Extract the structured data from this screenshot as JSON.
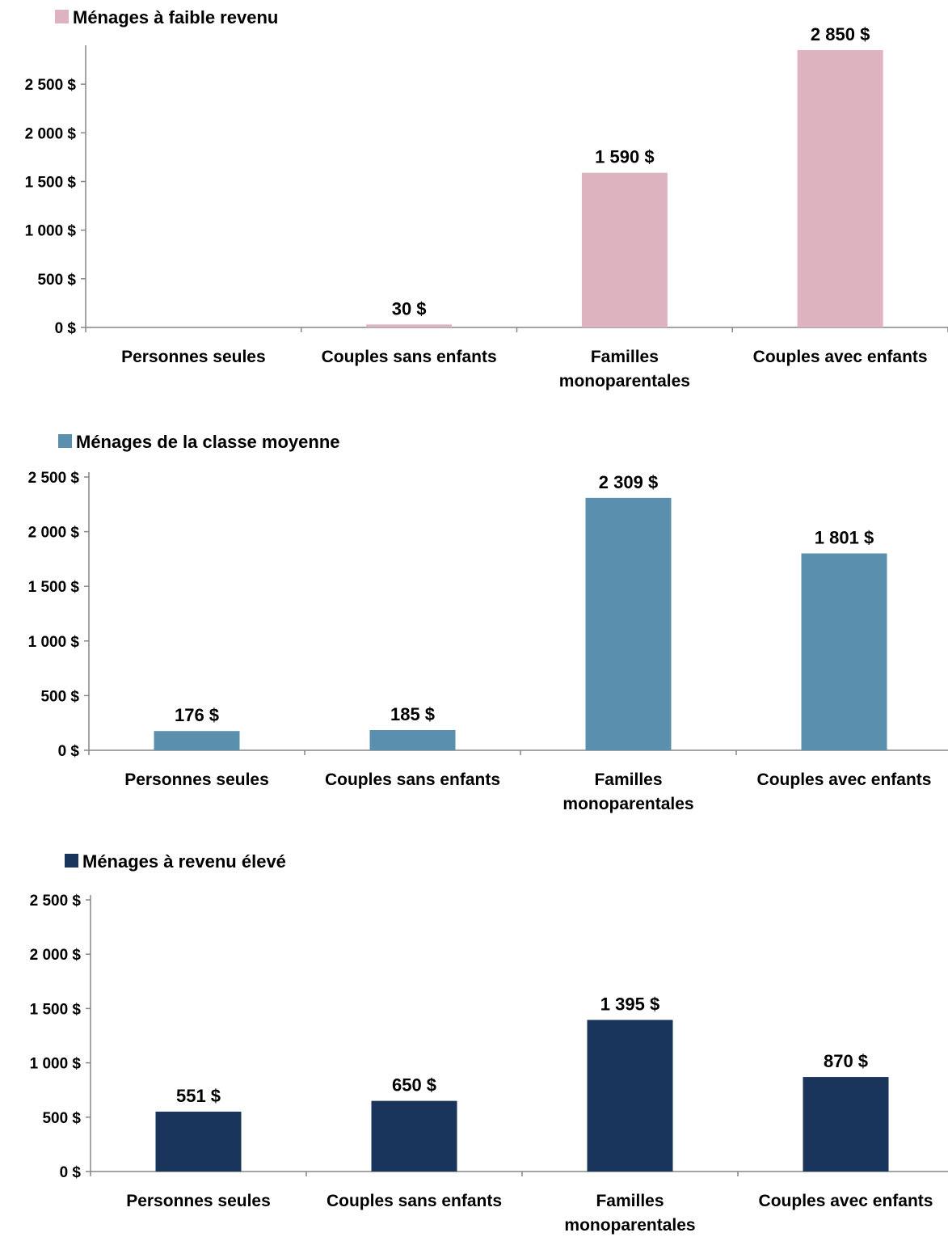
{
  "chart_data": [
    {
      "type": "bar",
      "series_name": "Ménages à faible revenu",
      "color": "#DEB3C0",
      "categories": [
        [
          "Personnes seules"
        ],
        [
          "Couples sans enfants"
        ],
        [
          "Familles",
          "monoparentales"
        ],
        [
          "Couples avec enfants"
        ]
      ],
      "values": [
        0,
        30,
        1590,
        2850
      ],
      "value_labels": [
        "",
        "30 $",
        "1 590 $",
        "2 850 $"
      ],
      "ylim": [
        0,
        2850
      ],
      "yticks": [
        0,
        500,
        1000,
        1500,
        2000,
        2500
      ],
      "ytick_labels": [
        "0 $",
        "500 $",
        "1 000 $",
        "1 500 $",
        "2 000 $",
        "2 500 $"
      ],
      "legend": "top-left",
      "grid": false
    },
    {
      "type": "bar",
      "series_name": "Ménages de la classe moyenne",
      "color": "#5A8FAE",
      "categories": [
        [
          "Personnes seules"
        ],
        [
          "Couples sans enfants"
        ],
        [
          "Familles",
          "monoparentales"
        ],
        [
          "Couples avec enfants"
        ]
      ],
      "values": [
        176,
        185,
        2309,
        1801
      ],
      "value_labels": [
        "176 $",
        "185 $",
        "2 309 $",
        "1 801 $"
      ],
      "ylim": [
        0,
        2500
      ],
      "yticks": [
        0,
        500,
        1000,
        1500,
        2000,
        2500
      ],
      "ytick_labels": [
        "0 $",
        "500 $",
        "1 000 $",
        "1 500 $",
        "2 000 $",
        "2 500 $"
      ],
      "legend": "top-left",
      "grid": false
    },
    {
      "type": "bar",
      "series_name": "Ménages à revenu élevé",
      "color": "#1A355C",
      "categories": [
        [
          "Personnes seules"
        ],
        [
          "Couples sans enfants"
        ],
        [
          "Familles",
          "monoparentales"
        ],
        [
          "Couples avec enfants"
        ]
      ],
      "values": [
        551,
        650,
        1395,
        870
      ],
      "value_labels": [
        "551 $",
        "650 $",
        "1 395 $",
        "870 $"
      ],
      "ylim": [
        0,
        2500
      ],
      "yticks": [
        0,
        500,
        1000,
        1500,
        2000,
        2500
      ],
      "ytick_labels": [
        "0 $",
        "500 $",
        "1 000 $",
        "1 500 $",
        "2 000 $",
        "2 500 $"
      ],
      "legend": "top-left",
      "grid": false
    }
  ]
}
